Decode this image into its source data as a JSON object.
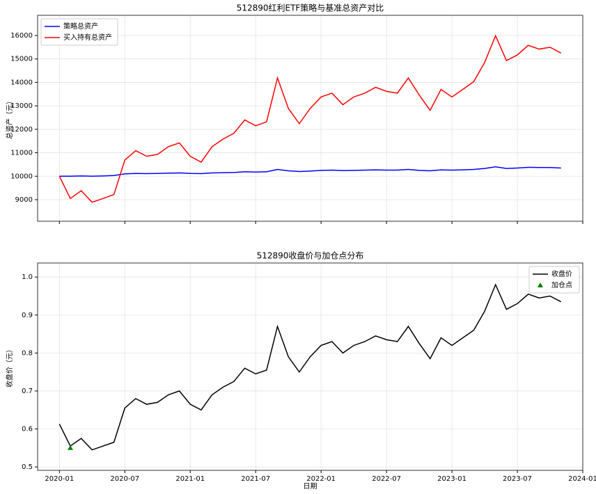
{
  "chart_data": [
    {
      "type": "line",
      "title": "512890红利ETF策略与基准总资产对比",
      "ylabel": "总资产（元）",
      "x": [
        "2020-01",
        "2020-02",
        "2020-03",
        "2020-04",
        "2020-05",
        "2020-06",
        "2020-07",
        "2020-08",
        "2020-09",
        "2020-10",
        "2020-11",
        "2020-12",
        "2021-01",
        "2021-02",
        "2021-03",
        "2021-04",
        "2021-05",
        "2021-06",
        "2021-07",
        "2021-08",
        "2021-09",
        "2021-10",
        "2021-11",
        "2021-12",
        "2022-01",
        "2022-02",
        "2022-03",
        "2022-04",
        "2022-05",
        "2022-06",
        "2022-07",
        "2022-08",
        "2022-09",
        "2022-10",
        "2022-11",
        "2022-12",
        "2023-01",
        "2023-02",
        "2023-03",
        "2023-04",
        "2023-05",
        "2023-06",
        "2023-07",
        "2023-08",
        "2023-09",
        "2023-10",
        "2023-11"
      ],
      "series": [
        {
          "name": "策略总资产",
          "color": "#0000ff",
          "values": [
            10000,
            10000,
            10010,
            10000,
            10010,
            10030,
            10100,
            10120,
            10110,
            10120,
            10130,
            10140,
            10120,
            10110,
            10140,
            10150,
            10160,
            10190,
            10180,
            10190,
            10290,
            10230,
            10200,
            10220,
            10250,
            10260,
            10240,
            10250,
            10260,
            10270,
            10260,
            10260,
            10290,
            10250,
            10230,
            10270,
            10260,
            10270,
            10290,
            10330,
            10400,
            10330,
            10350,
            10380,
            10370,
            10370,
            10350
          ]
        },
        {
          "name": "买入持有总资产",
          "color": "#ff0000",
          "values": [
            10000,
            9050,
            9380,
            8890,
            9050,
            9220,
            10690,
            11090,
            10850,
            10930,
            11260,
            11420,
            10850,
            10600,
            11260,
            11580,
            11830,
            12400,
            12150,
            12320,
            14190,
            12890,
            12240,
            12890,
            13380,
            13540,
            13050,
            13380,
            13540,
            13790,
            13620,
            13540,
            14190,
            13460,
            12810,
            13700,
            13380,
            13700,
            14030,
            14850,
            15990,
            14930,
            15170,
            15580,
            15420,
            15500,
            15250
          ]
        }
      ],
      "xlim": [
        "2019-11",
        "2024-01"
      ],
      "xticks": [
        "2020-01",
        "2020-07",
        "2021-01",
        "2021-07",
        "2022-01",
        "2022-07",
        "2023-01",
        "2023-07",
        "2024-01"
      ],
      "ylim": [
        8080,
        16860
      ],
      "yticks": [
        9000,
        10000,
        11000,
        12000,
        13000,
        14000,
        15000,
        16000
      ],
      "grid": true,
      "legend": "upper left"
    },
    {
      "type": "line",
      "title": "512890收盘价与加仓点分布",
      "ylabel": "收盘价（元）",
      "xlabel": "日期",
      "x": [
        "2020-01",
        "2020-02",
        "2020-03",
        "2020-04",
        "2020-05",
        "2020-06",
        "2020-07",
        "2020-08",
        "2020-09",
        "2020-10",
        "2020-11",
        "2020-12",
        "2021-01",
        "2021-02",
        "2021-03",
        "2021-04",
        "2021-05",
        "2021-06",
        "2021-07",
        "2021-08",
        "2021-09",
        "2021-10",
        "2021-11",
        "2021-12",
        "2022-01",
        "2022-02",
        "2022-03",
        "2022-04",
        "2022-05",
        "2022-06",
        "2022-07",
        "2022-08",
        "2022-09",
        "2022-10",
        "2022-11",
        "2022-12",
        "2023-01",
        "2023-02",
        "2023-03",
        "2023-04",
        "2023-05",
        "2023-06",
        "2023-07",
        "2023-08",
        "2023-09",
        "2023-10",
        "2023-11"
      ],
      "series": [
        {
          "name": "收盘价",
          "color": "#000000",
          "values": [
            0.613,
            0.555,
            0.575,
            0.545,
            0.555,
            0.565,
            0.655,
            0.68,
            0.665,
            0.67,
            0.69,
            0.7,
            0.665,
            0.65,
            0.69,
            0.71,
            0.725,
            0.76,
            0.745,
            0.755,
            0.87,
            0.79,
            0.75,
            0.79,
            0.82,
            0.83,
            0.8,
            0.82,
            0.83,
            0.845,
            0.835,
            0.83,
            0.87,
            0.825,
            0.785,
            0.84,
            0.82,
            0.84,
            0.86,
            0.91,
            0.98,
            0.915,
            0.93,
            0.955,
            0.945,
            0.95,
            0.935
          ]
        }
      ],
      "points": {
        "name": "加仓点",
        "color": "#008000",
        "x": [
          "2020-02"
        ],
        "values": [
          0.55
        ]
      },
      "xlim": [
        "2019-11",
        "2024-01"
      ],
      "xticks": [
        "2020-01",
        "2020-07",
        "2021-01",
        "2021-07",
        "2022-01",
        "2022-07",
        "2023-01",
        "2023-07",
        "2024-01"
      ],
      "ylim": [
        0.491,
        1.037
      ],
      "yticks": [
        0.5,
        0.6,
        0.7,
        0.8,
        0.9,
        {
          "value": 1,
          "label": "1.0"
        }
      ],
      "grid": true,
      "legend": "upper right"
    }
  ]
}
